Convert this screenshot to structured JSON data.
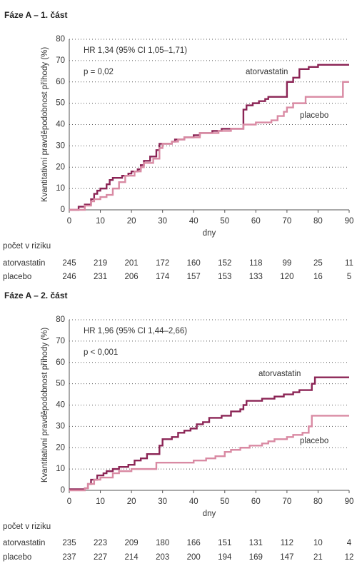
{
  "chart_data": [
    {
      "type": "line",
      "title": "Fáze A – 1. část",
      "annotations": [
        "HR 1,34 (95% CI 1,05–1,71)",
        "p = 0,02"
      ],
      "x_label": "dny",
      "y_label": "Kvantitativní pravděpodobnost příhody (%)",
      "xlim": [
        0,
        90
      ],
      "xticks": [
        0,
        10,
        20,
        30,
        40,
        50,
        60,
        70,
        80,
        90
      ],
      "ylim": [
        0,
        80
      ],
      "yticks": [
        0,
        10,
        20,
        30,
        40,
        50,
        60,
        70,
        80
      ],
      "grid": true,
      "series": [
        {
          "name": "atorvastatin",
          "color": "#8b2455",
          "x": [
            0,
            3,
            5,
            7,
            8,
            9,
            10,
            12,
            13,
            14,
            17,
            19,
            20,
            22,
            23,
            24,
            26,
            28,
            29,
            33,
            34,
            37,
            40,
            42,
            46,
            49,
            56,
            57,
            59,
            61,
            63,
            64,
            70,
            72,
            74,
            77,
            80,
            90
          ],
          "values": [
            0,
            1.5,
            2.5,
            5,
            7.5,
            9,
            10,
            12,
            14,
            15,
            16,
            17,
            18,
            19,
            21,
            23,
            25,
            28,
            31,
            32,
            33,
            34,
            35,
            36,
            37,
            38,
            47,
            49,
            50,
            51,
            52,
            53,
            60,
            62,
            66,
            67,
            68,
            68
          ]
        },
        {
          "name": "placebo",
          "color": "#d98aa3",
          "x": [
            0,
            5,
            7,
            8,
            10,
            12,
            14,
            16,
            18,
            21,
            23,
            24,
            27,
            29,
            30,
            33,
            35,
            37,
            42,
            48,
            52,
            56,
            60,
            65,
            67,
            69,
            70,
            72,
            76,
            88,
            90
          ],
          "values": [
            0,
            2,
            4,
            5,
            6,
            7,
            10,
            13,
            16,
            18,
            20,
            22,
            24,
            29,
            31,
            32,
            33,
            34,
            36,
            37,
            38,
            40,
            41,
            42,
            44,
            46,
            48,
            50,
            53,
            60,
            60
          ]
        }
      ],
      "risk_table": {
        "title": "počet v riziku",
        "rows": [
          {
            "name": "atorvastatin",
            "values": [
              245,
              219,
              201,
              172,
              160,
              152,
              118,
              99,
              25,
              11
            ]
          },
          {
            "name": "placebo",
            "values": [
              246,
              231,
              206,
              174,
              157,
              153,
              133,
              120,
              16,
              5
            ]
          }
        ]
      }
    },
    {
      "type": "line",
      "title": "Fáze A – 2. část",
      "annotations": [
        "HR 1,96 (95% CI 1,44–2,66)",
        "p < 0,001"
      ],
      "x_label": "dny",
      "y_label": "Kvantitativní pravděpodobnost příhody (%)",
      "xlim": [
        0,
        90
      ],
      "xticks": [
        0,
        10,
        20,
        30,
        40,
        50,
        60,
        70,
        80,
        90
      ],
      "ylim": [
        0,
        80
      ],
      "yticks": [
        0,
        10,
        20,
        30,
        40,
        50,
        60,
        70,
        80
      ],
      "grid": true,
      "series": [
        {
          "name": "atorvastatin",
          "color": "#8b2455",
          "x": [
            0,
            5,
            6,
            7,
            9,
            11,
            12,
            14,
            16,
            19,
            21,
            23,
            25,
            29,
            30,
            33,
            35,
            37,
            39,
            41,
            43,
            45,
            49,
            52,
            55,
            56,
            57,
            62,
            66,
            69,
            72,
            74,
            78,
            79,
            90
          ],
          "values": [
            0.5,
            1,
            3,
            5,
            7,
            8,
            9,
            10,
            11,
            12,
            14,
            15,
            17,
            21,
            24,
            25,
            27,
            28,
            29,
            31,
            32,
            34,
            35,
            37,
            38,
            40,
            42,
            43,
            44,
            45,
            46,
            47,
            50,
            53,
            53
          ]
        },
        {
          "name": "placebo",
          "color": "#d98aa3",
          "x": [
            0,
            5,
            6,
            8,
            10,
            14,
            16,
            20,
            28,
            40,
            44,
            47,
            50,
            52,
            55,
            58,
            62,
            64,
            66,
            70,
            72,
            75,
            77,
            78,
            90
          ],
          "values": [
            0,
            1,
            3,
            5,
            6,
            8,
            9,
            10,
            13,
            14,
            15,
            16,
            18,
            19,
            20,
            21,
            22,
            23,
            24,
            25,
            26,
            27,
            30,
            35,
            35
          ]
        }
      ],
      "risk_table": {
        "title": "počet v riziku",
        "rows": [
          {
            "name": "atorvastatin",
            "values": [
              235,
              223,
              209,
              180,
              166,
              151,
              131,
              112,
              10,
              4
            ]
          },
          {
            "name": "placebo",
            "values": [
              237,
              227,
              214,
              203,
              200,
              194,
              169,
              147,
              21,
              12
            ]
          }
        ]
      }
    }
  ]
}
